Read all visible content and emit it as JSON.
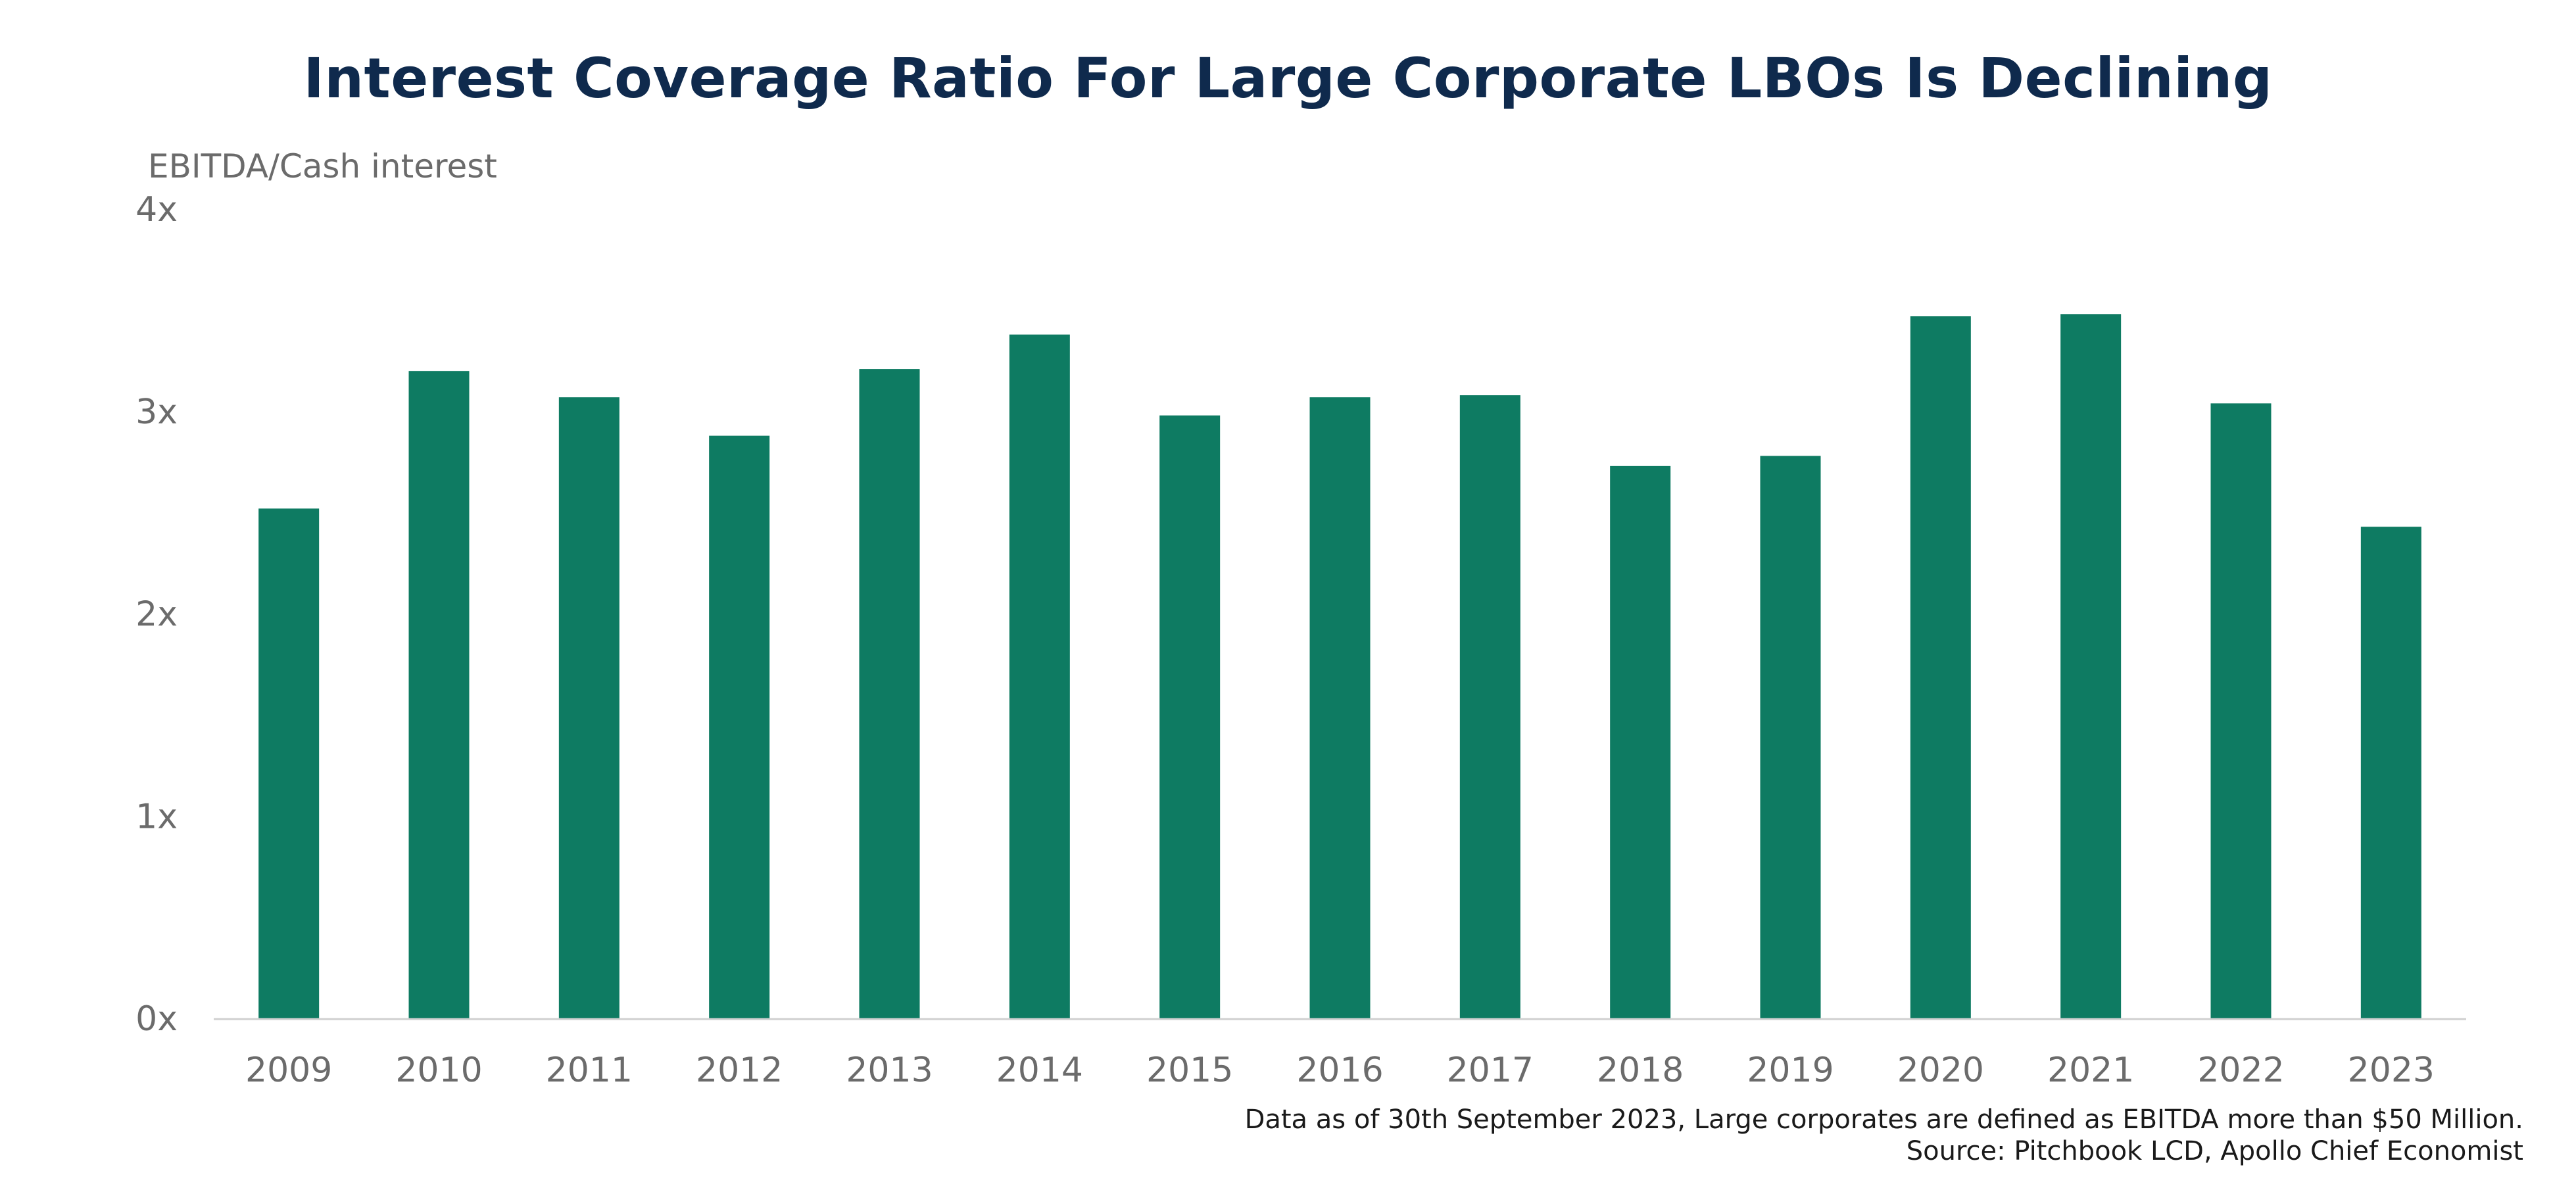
{
  "chart_data": {
    "type": "bar",
    "title": "Interest Coverage Ratio For Large Corporate LBOs Is Declining",
    "ylabel": "EBITDA/Cash interest",
    "xlabel": "",
    "categories": [
      "2009",
      "2010",
      "2011",
      "2012",
      "2013",
      "2014",
      "2015",
      "2016",
      "2017",
      "2018",
      "2019",
      "2020",
      "2021",
      "2022",
      "2023"
    ],
    "values": [
      2.52,
      3.2,
      3.07,
      2.88,
      3.21,
      3.38,
      2.98,
      3.07,
      3.08,
      2.73,
      2.78,
      3.47,
      3.48,
      3.04,
      2.43
    ],
    "ylim": [
      0,
      4
    ],
    "yticks": [
      "0x",
      "1x",
      "2x",
      "3x",
      "4x"
    ],
    "grid": false,
    "legend": "none",
    "bar_color": "#0e7b62"
  },
  "footnotes": {
    "note": "Data as of 30th September 2023, Large corporates are defined as EBITDA more than $50 Million.",
    "source": "Source: Pitchbook LCD, Apollo Chief Economist"
  }
}
